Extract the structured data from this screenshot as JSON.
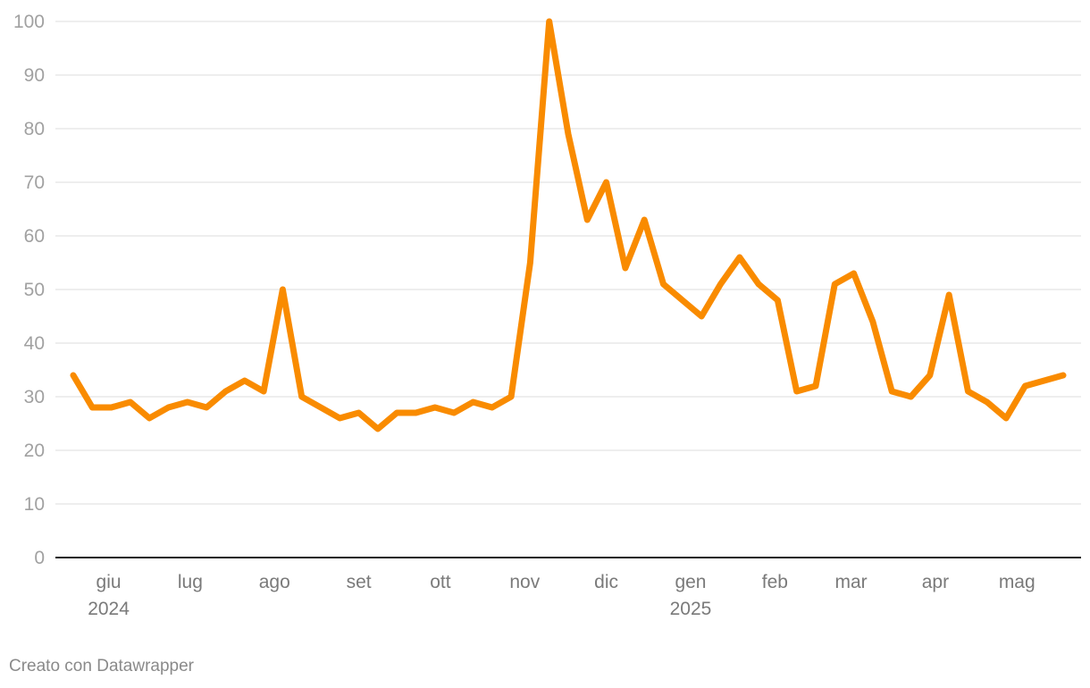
{
  "chart_data": {
    "type": "line",
    "title": "",
    "xlabel": "",
    "ylabel": "",
    "ylim": [
      0,
      100
    ],
    "y_ticks": [
      0,
      10,
      20,
      30,
      40,
      50,
      60,
      70,
      80,
      90,
      100
    ],
    "grid": true,
    "x_start": "2024-05-19",
    "x_interval_days": 7,
    "x_ticks": [
      {
        "label": "giu",
        "sub": "2024",
        "date": "2024-06-01"
      },
      {
        "label": "lug",
        "sub": "",
        "date": "2024-07-01"
      },
      {
        "label": "ago",
        "sub": "",
        "date": "2024-08-01"
      },
      {
        "label": "set",
        "sub": "",
        "date": "2024-09-01"
      },
      {
        "label": "ott",
        "sub": "",
        "date": "2024-10-01"
      },
      {
        "label": "nov",
        "sub": "",
        "date": "2024-11-01"
      },
      {
        "label": "dic",
        "sub": "",
        "date": "2024-12-01"
      },
      {
        "label": "gen",
        "sub": "2025",
        "date": "2025-01-01"
      },
      {
        "label": "feb",
        "sub": "",
        "date": "2025-02-01"
      },
      {
        "label": "mar",
        "sub": "",
        "date": "2025-03-01"
      },
      {
        "label": "apr",
        "sub": "",
        "date": "2025-04-01"
      },
      {
        "label": "mag",
        "sub": "",
        "date": "2025-05-01"
      }
    ],
    "series": [
      {
        "color": "#f98b00",
        "values": [
          34,
          28,
          28,
          29,
          26,
          28,
          29,
          28,
          31,
          33,
          31,
          50,
          30,
          28,
          26,
          27,
          24,
          27,
          27,
          28,
          27,
          29,
          28,
          30,
          55,
          100,
          79,
          63,
          70,
          54,
          63,
          51,
          48,
          45,
          51,
          56,
          51,
          48,
          31,
          32,
          51,
          53,
          44,
          31,
          30,
          34,
          49,
          31,
          29,
          26,
          32,
          33,
          34
        ]
      }
    ]
  },
  "footer": {
    "credit": "Creato con Datawrapper"
  }
}
